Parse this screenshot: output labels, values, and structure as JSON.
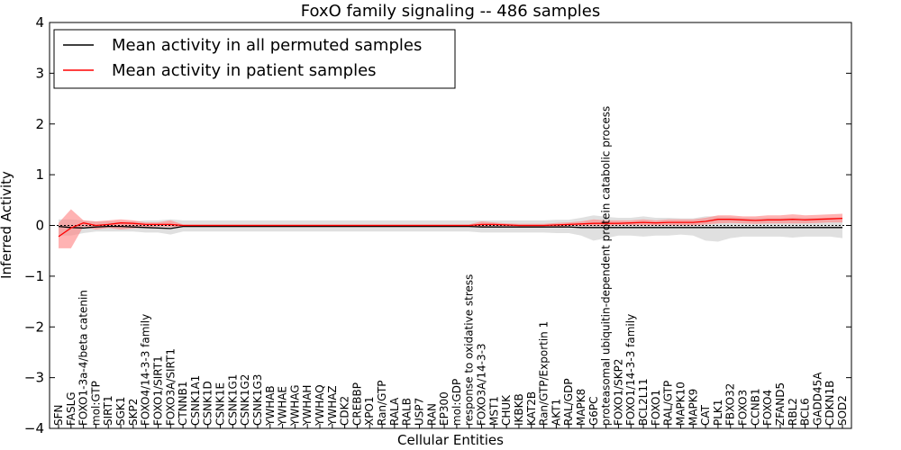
{
  "chart_data": {
    "type": "line",
    "title": "FoxO family signaling -- 486 samples",
    "xlabel": "Cellular Entities",
    "ylabel": "Inferred Activity",
    "ylim": [
      -4,
      4
    ],
    "yticks": [
      -4,
      -3,
      -2,
      -1,
      0,
      1,
      2,
      3,
      4
    ],
    "ytick_labels": [
      "−4",
      "−3",
      "−2",
      "−1",
      "0",
      "1",
      "2",
      "3",
      "4"
    ],
    "legend_position": "top-left",
    "categories": [
      "SFN",
      "FASLG",
      "FOXO1-3a-4/beta catenin",
      "mol:GTP",
      "SIRT1",
      "SGK1",
      "SKP2",
      "FOXO4/14-3-3 family",
      "FOXO1/SIRT1",
      "FOXO3A/SIRT1",
      "CTNNB1",
      "CSNK1A1",
      "CSNK1D",
      "CSNK1E",
      "CSNK1G1",
      "CSNK1G2",
      "CSNK1G3",
      "YWHAB",
      "YWHAE",
      "YWHAG",
      "YWHAH",
      "YWHAQ",
      "YWHAZ",
      "CDK2",
      "CREBBP",
      "XPO1",
      "Ran/GTP",
      "RALA",
      "RALB",
      "USP7",
      "RAN",
      "EP300",
      "mol:GDP",
      "response to oxidative stress",
      "FOXO3A/14-3-3",
      "MST1",
      "CHUK",
      "IKBKB",
      "KAT2B",
      "Ran/GTP/Exportin 1",
      "AKT1",
      "RAL/GDP",
      "MAPK8",
      "G6PC",
      "proteasomal ubiquitin-dependent protein catabolic process",
      "FOXO1/SKP2",
      "FOXO1/14-3-3 family",
      "BCL2L11",
      "FOXO1",
      "RAL/GTP",
      "MAPK10",
      "MAPK9",
      "CAT",
      "PLK1",
      "FBXO32",
      "FOXO3",
      "CCNB1",
      "FOXO4",
      "ZFAND5",
      "RBL2",
      "BCL6",
      "GADD45A",
      "CDKN1B",
      "SOD2"
    ],
    "series": [
      {
        "name": "Mean activity in all permuted samples",
        "color": "#000000",
        "band_color": "#bbbbbb",
        "values": [
          -0.02,
          -0.04,
          -0.05,
          -0.03,
          -0.02,
          -0.02,
          -0.03,
          -0.04,
          -0.05,
          -0.06,
          -0.02,
          -0.02,
          -0.02,
          -0.02,
          -0.02,
          -0.02,
          -0.02,
          -0.02,
          -0.02,
          -0.02,
          -0.02,
          -0.02,
          -0.02,
          -0.02,
          -0.02,
          -0.02,
          -0.02,
          -0.02,
          -0.02,
          -0.02,
          -0.02,
          -0.02,
          -0.02,
          -0.02,
          -0.03,
          -0.03,
          -0.03,
          -0.03,
          -0.03,
          -0.03,
          -0.03,
          -0.03,
          -0.04,
          -0.04,
          -0.04,
          -0.04,
          -0.04,
          -0.04,
          -0.04,
          -0.04,
          -0.04,
          -0.04,
          -0.04,
          -0.04,
          -0.04,
          -0.04,
          -0.04,
          -0.04,
          -0.04,
          -0.04,
          -0.04,
          -0.04,
          -0.04,
          -0.04
        ],
        "band_low": [
          -0.2,
          -0.2,
          -0.15,
          -0.12,
          -0.12,
          -0.12,
          -0.12,
          -0.14,
          -0.14,
          -0.18,
          -0.12,
          -0.12,
          -0.12,
          -0.12,
          -0.12,
          -0.12,
          -0.12,
          -0.12,
          -0.12,
          -0.12,
          -0.12,
          -0.12,
          -0.12,
          -0.12,
          -0.12,
          -0.12,
          -0.12,
          -0.12,
          -0.12,
          -0.12,
          -0.12,
          -0.12,
          -0.12,
          -0.12,
          -0.14,
          -0.14,
          -0.14,
          -0.14,
          -0.14,
          -0.14,
          -0.15,
          -0.15,
          -0.2,
          -0.3,
          -0.25,
          -0.2,
          -0.2,
          -0.22,
          -0.2,
          -0.2,
          -0.18,
          -0.2,
          -0.3,
          -0.32,
          -0.25,
          -0.22,
          -0.22,
          -0.22,
          -0.22,
          -0.24,
          -0.22,
          -0.22,
          -0.22,
          -0.25
        ],
        "band_high": [
          0.12,
          0.12,
          0.1,
          0.08,
          0.08,
          0.08,
          0.08,
          0.1,
          0.1,
          0.12,
          0.1,
          0.1,
          0.1,
          0.1,
          0.1,
          0.1,
          0.1,
          0.1,
          0.1,
          0.1,
          0.1,
          0.1,
          0.1,
          0.1,
          0.1,
          0.1,
          0.1,
          0.1,
          0.1,
          0.1,
          0.1,
          0.1,
          0.1,
          0.1,
          0.1,
          0.1,
          0.1,
          0.1,
          0.1,
          0.1,
          0.11,
          0.11,
          0.15,
          0.2,
          0.17,
          0.15,
          0.15,
          0.18,
          0.15,
          0.15,
          0.14,
          0.14,
          0.18,
          0.18,
          0.17,
          0.15,
          0.15,
          0.15,
          0.15,
          0.16,
          0.15,
          0.15,
          0.15,
          0.16
        ]
      },
      {
        "name": "Mean activity in patient samples",
        "color": "#ff0000",
        "band_color": "#ff8080",
        "values": [
          -0.22,
          -0.05,
          0.05,
          0.0,
          0.02,
          0.05,
          0.04,
          0.02,
          0.02,
          0.02,
          0.0,
          0.0,
          0.0,
          0.0,
          0.0,
          0.0,
          0.0,
          0.0,
          0.0,
          0.0,
          0.0,
          0.0,
          0.0,
          0.0,
          0.0,
          0.0,
          0.0,
          0.0,
          0.0,
          0.0,
          0.0,
          0.0,
          0.0,
          0.0,
          0.02,
          0.02,
          0.01,
          0.0,
          0.0,
          0.0,
          0.01,
          0.02,
          0.03,
          0.04,
          0.04,
          0.04,
          0.05,
          0.06,
          0.05,
          0.06,
          0.06,
          0.06,
          0.08,
          0.12,
          0.12,
          0.11,
          0.1,
          0.11,
          0.11,
          0.12,
          0.11,
          0.12,
          0.13,
          0.14
        ],
        "band_low": [
          -0.45,
          -0.45,
          -0.02,
          -0.08,
          -0.05,
          -0.08,
          -0.06,
          -0.04,
          -0.02,
          -0.03,
          -0.02,
          -0.02,
          -0.02,
          -0.02,
          -0.02,
          -0.02,
          -0.02,
          -0.02,
          -0.02,
          -0.02,
          -0.02,
          -0.02,
          -0.02,
          -0.02,
          -0.02,
          -0.02,
          -0.02,
          -0.02,
          -0.02,
          -0.02,
          -0.02,
          -0.02,
          -0.02,
          -0.02,
          -0.02,
          -0.01,
          -0.01,
          -0.02,
          -0.02,
          -0.02,
          -0.02,
          -0.01,
          -0.01,
          -0.01,
          -0.01,
          0.0,
          0.0,
          0.0,
          0.0,
          0.0,
          0.0,
          0.0,
          0.02,
          0.04,
          0.05,
          0.04,
          0.03,
          0.04,
          0.04,
          0.04,
          0.04,
          0.05,
          0.06,
          0.06
        ],
        "band_high": [
          0.05,
          0.32,
          0.1,
          0.08,
          0.1,
          0.12,
          0.1,
          0.06,
          0.06,
          0.1,
          0.02,
          0.02,
          0.02,
          0.02,
          0.02,
          0.02,
          0.02,
          0.02,
          0.02,
          0.02,
          0.02,
          0.02,
          0.02,
          0.02,
          0.02,
          0.02,
          0.02,
          0.02,
          0.02,
          0.02,
          0.02,
          0.02,
          0.02,
          0.02,
          0.08,
          0.06,
          0.04,
          0.03,
          0.03,
          0.03,
          0.05,
          0.06,
          0.08,
          0.12,
          0.1,
          0.1,
          0.1,
          0.12,
          0.1,
          0.12,
          0.12,
          0.12,
          0.15,
          0.2,
          0.2,
          0.18,
          0.18,
          0.2,
          0.2,
          0.22,
          0.2,
          0.21,
          0.22,
          0.23
        ]
      }
    ]
  }
}
